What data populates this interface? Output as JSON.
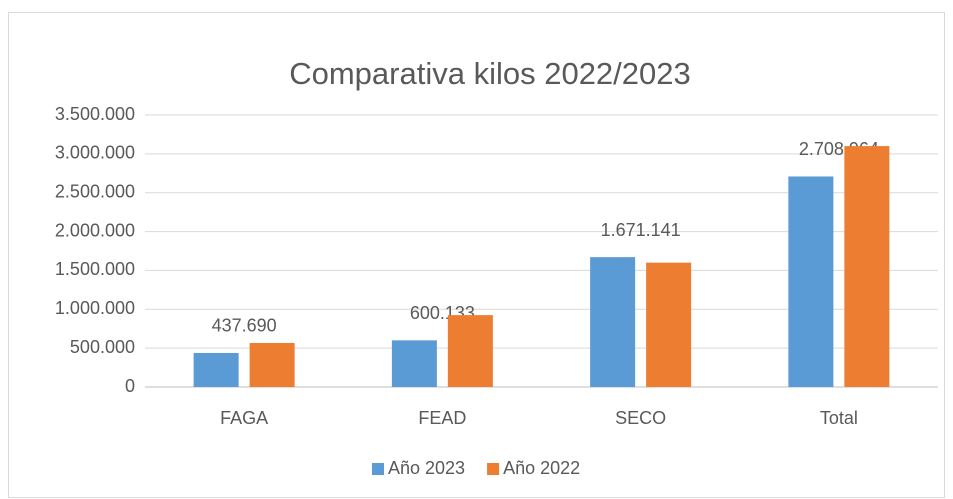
{
  "chart_data": {
    "type": "bar",
    "title": "Comparativa kilos 2022/2023",
    "categories": [
      "FAGA",
      "FEAD",
      "SECO",
      "Total"
    ],
    "series": [
      {
        "name": "Año 2023",
        "color": "#5b9bd5",
        "values": [
          437690,
          600133,
          1671141,
          2708964
        ],
        "value_labels": [
          "437.690",
          "600.133",
          "1.671.141",
          "2.708.964"
        ]
      },
      {
        "name": "Año 2022",
        "color": "#ed7d31",
        "values": [
          566000,
          925000,
          1600000,
          3100000
        ]
      }
    ],
    "ylim": [
      0,
      3500000
    ],
    "yticks": [
      0,
      {
        "value": 500000,
        "label": "500.000"
      },
      {
        "value": 1000000,
        "label": "1.000.000"
      },
      {
        "value": 1500000,
        "label": "1.500.000"
      },
      {
        "value": 2000000,
        "label": "2.000.000"
      },
      {
        "value": 2500000,
        "label": "2.500.000"
      },
      {
        "value": 3000000,
        "label": "3.000.000"
      },
      {
        "value": 3500000,
        "label": "3.500.000"
      }
    ],
    "grid": true,
    "legend": "bottom"
  }
}
